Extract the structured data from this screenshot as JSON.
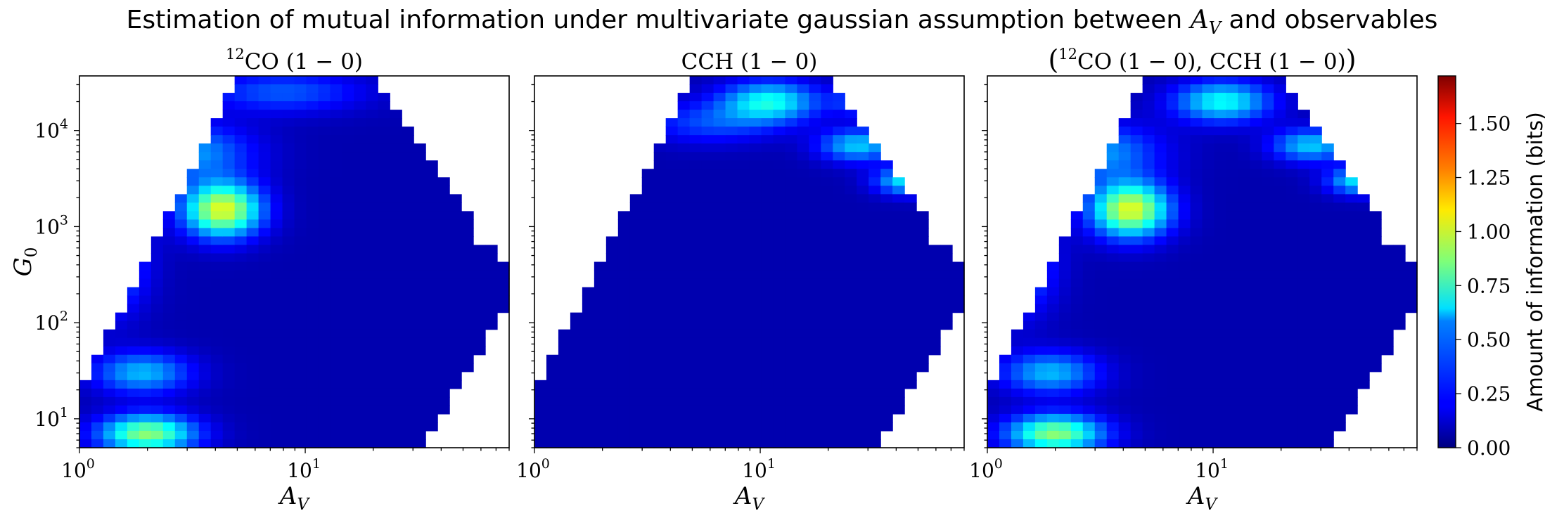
{
  "figure": {
    "title_pre": "Estimation of mutual information under multivariate gaussian assumption between ",
    "title_var": "A",
    "title_var_sub": "V",
    "title_post": " and observables"
  },
  "colorbar": {
    "label": "Amount of information (bits)",
    "colormap": "jet",
    "range": [
      0.0,
      1.72
    ],
    "ticks": [
      "0.00",
      "0.25",
      "0.50",
      "0.75",
      "1.00",
      "1.25",
      "1.50"
    ]
  },
  "axes": {
    "xlabel": "A",
    "xlabel_sub": "V",
    "ylabel": "G",
    "ylabel_sub": "0",
    "x_scale": "log",
    "y_scale": "log",
    "xlim": [
      1,
      80
    ],
    "ylim": [
      5,
      37000
    ],
    "x_ticks": [
      {
        "base": "10",
        "exp": "0"
      },
      {
        "base": "10",
        "exp": "1"
      }
    ],
    "y_ticks": [
      {
        "base": "10",
        "exp": "1"
      },
      {
        "base": "10",
        "exp": "2"
      },
      {
        "base": "10",
        "exp": "3"
      },
      {
        "base": "10",
        "exp": "4"
      }
    ]
  },
  "chart_data": [
    {
      "type": "heatmap",
      "title": "12CO (1 − 0)",
      "title_parts": {
        "pre": "",
        "sup": "12",
        "main": "CO (1 − 0)",
        "post": ""
      },
      "x_scale": "log",
      "y_scale": "log",
      "xlim": [
        1,
        80
      ],
      "ylim": [
        5,
        37000
      ],
      "value_range": [
        0.0,
        1.72
      ],
      "blobs": [
        {
          "av": 4.3,
          "g0": 1500,
          "value": 0.95,
          "spread_x": 0.12,
          "spread_y": 0.2
        },
        {
          "av": 2.0,
          "g0": 7,
          "value": 0.8,
          "spread_x": 0.15,
          "spread_y": 0.14
        },
        {
          "av": 1.9,
          "g0": 30,
          "value": 0.45,
          "spread_x": 0.15,
          "spread_y": 0.15
        },
        {
          "av": 1.3,
          "g0": 400,
          "value": 0.42,
          "spread_x": 0.12,
          "spread_y": 0.35
        },
        {
          "av": 3.0,
          "g0": 6000,
          "value": 0.4,
          "spread_x": 0.2,
          "spread_y": 0.2
        },
        {
          "av": 8.0,
          "g0": 25000,
          "value": 0.28,
          "spread_x": 0.25,
          "spread_y": 0.15
        }
      ]
    },
    {
      "type": "heatmap",
      "title": "CCH (1 − 0)",
      "title_parts": {
        "pre": "",
        "sup": "",
        "main": "CCH (1 − 0)",
        "post": ""
      },
      "x_scale": "log",
      "y_scale": "log",
      "xlim": [
        1,
        80
      ],
      "ylim": [
        5,
        37000
      ],
      "value_range": [
        0.0,
        1.72
      ],
      "blobs": [
        {
          "av": 11,
          "g0": 20000,
          "value": 0.58,
          "spread_x": 0.15,
          "spread_y": 0.15
        },
        {
          "av": 27,
          "g0": 7000,
          "value": 0.48,
          "spread_x": 0.12,
          "spread_y": 0.12
        },
        {
          "av": 45,
          "g0": 3000,
          "value": 0.55,
          "spread_x": 0.1,
          "spread_y": 0.1
        },
        {
          "av": 30,
          "g0": 20000,
          "value": 0.35,
          "spread_x": 0.1,
          "spread_y": 0.1
        },
        {
          "av": 6,
          "g0": 12000,
          "value": 0.25,
          "spread_x": 0.2,
          "spread_y": 0.15
        }
      ]
    },
    {
      "type": "heatmap",
      "title": "(12CO (1 − 0), CCH (1 − 0))",
      "title_parts": {
        "pre": "(",
        "sup": "12",
        "main": "CO (1 − 0), CCH (1 − 0)",
        "post": ")"
      },
      "x_scale": "log",
      "y_scale": "log",
      "xlim": [
        1,
        80
      ],
      "ylim": [
        5,
        37000
      ],
      "value_range": [
        0.0,
        1.72
      ],
      "blobs": [
        {
          "av": 4.3,
          "g0": 1500,
          "value": 0.95,
          "spread_x": 0.12,
          "spread_y": 0.2
        },
        {
          "av": 2.0,
          "g0": 7,
          "value": 0.8,
          "spread_x": 0.15,
          "spread_y": 0.14
        },
        {
          "av": 1.9,
          "g0": 30,
          "value": 0.45,
          "spread_x": 0.15,
          "spread_y": 0.15
        },
        {
          "av": 1.3,
          "g0": 400,
          "value": 0.42,
          "spread_x": 0.12,
          "spread_y": 0.35
        },
        {
          "av": 3.0,
          "g0": 6000,
          "value": 0.4,
          "spread_x": 0.2,
          "spread_y": 0.2
        },
        {
          "av": 11,
          "g0": 20000,
          "value": 0.58,
          "spread_x": 0.15,
          "spread_y": 0.15
        },
        {
          "av": 27,
          "g0": 7000,
          "value": 0.48,
          "spread_x": 0.12,
          "spread_y": 0.12
        },
        {
          "av": 45,
          "g0": 3000,
          "value": 0.55,
          "spread_x": 0.1,
          "spread_y": 0.1
        }
      ]
    }
  ]
}
